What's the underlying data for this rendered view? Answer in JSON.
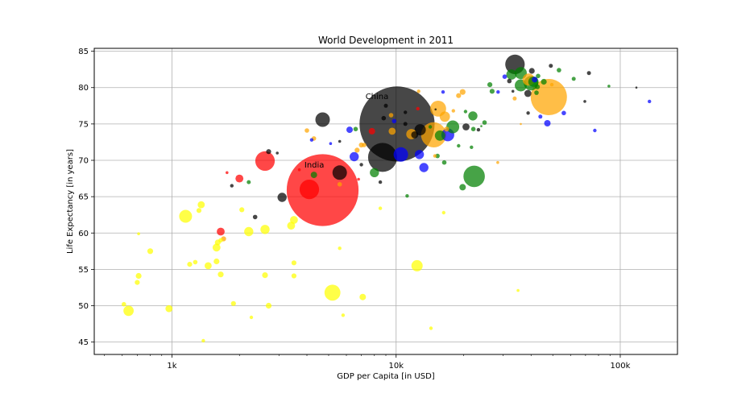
{
  "chart_data": {
    "type": "scatter",
    "title": "World Development in 2011",
    "xlabel": "GDP per Capita [in USD]",
    "ylabel": "Life Expectancy [in years]",
    "xscale": "log",
    "xlim": [
      450,
      180000
    ],
    "ylim": [
      43.3,
      85.4
    ],
    "grid": true,
    "xticks": [
      {
        "value": 1000,
        "label": "1k"
      },
      {
        "value": 10000,
        "label": "10k"
      },
      {
        "value": 100000,
        "label": "100k"
      }
    ],
    "yticks": [
      45,
      50,
      55,
      60,
      65,
      70,
      75,
      80,
      85
    ],
    "colors": {
      "black": "#000000",
      "red": "#ff0000",
      "yellow": "#ffff00",
      "orange": "#ffa500",
      "green": "#008000",
      "blue": "#0000ff"
    },
    "annotations": [
      {
        "text": "China",
        "x": 7300,
        "y": 78.4
      },
      {
        "text": "India",
        "x": 3900,
        "y": 69.0
      }
    ],
    "points": [
      {
        "x": 10100,
        "y": 75.0,
        "pop": 1340,
        "color": "black"
      },
      {
        "x": 4700,
        "y": 65.9,
        "pop": 1230,
        "color": "red"
      },
      {
        "x": 48000,
        "y": 78.7,
        "pop": 312,
        "color": "orange"
      },
      {
        "x": 5200,
        "y": 51.8,
        "pop": 60,
        "color": "yellow"
      },
      {
        "x": 4100,
        "y": 66.0,
        "pop": 90,
        "color": "red"
      },
      {
        "x": 8700,
        "y": 70.4,
        "pop": 200,
        "color": "black"
      },
      {
        "x": 14700,
        "y": 73.5,
        "pop": 150,
        "color": "orange"
      },
      {
        "x": 22300,
        "y": 67.8,
        "pop": 110,
        "color": "green"
      },
      {
        "x": 15400,
        "y": 77.1,
        "pop": 60,
        "color": "orange"
      },
      {
        "x": 33900,
        "y": 83.2,
        "pop": 90,
        "color": "black"
      },
      {
        "x": 2600,
        "y": 69.9,
        "pop": 90,
        "color": "red"
      },
      {
        "x": 4700,
        "y": 75.6,
        "pop": 50,
        "color": "black"
      },
      {
        "x": 5600,
        "y": 68.3,
        "pop": 50,
        "color": "black"
      },
      {
        "x": 10500,
        "y": 70.8,
        "pop": 50,
        "color": "blue"
      },
      {
        "x": 1150,
        "y": 62.3,
        "pop": 40,
        "color": "yellow"
      },
      {
        "x": 12400,
        "y": 55.5,
        "pop": 30,
        "color": "yellow"
      },
      {
        "x": 17000,
        "y": 73.5,
        "pop": 40,
        "color": "blue"
      },
      {
        "x": 17900,
        "y": 74.6,
        "pop": 40,
        "color": "green"
      },
      {
        "x": 40000,
        "y": 80.6,
        "pop": 50,
        "color": "green"
      },
      {
        "x": 36000,
        "y": 80.3,
        "pop": 35,
        "color": "green"
      },
      {
        "x": 36000,
        "y": 82.0,
        "pop": 35,
        "color": "green"
      },
      {
        "x": 39000,
        "y": 81.1,
        "pop": 35,
        "color": "orange"
      },
      {
        "x": 16500,
        "y": 76.0,
        "pop": 25,
        "color": "orange"
      },
      {
        "x": 12800,
        "y": 74.2,
        "pop": 30,
        "color": "black"
      },
      {
        "x": 11700,
        "y": 73.6,
        "pop": 25,
        "color": "orange"
      },
      {
        "x": 32700,
        "y": 81.8,
        "pop": 25,
        "color": "green"
      },
      {
        "x": 22000,
        "y": 76.1,
        "pop": 20,
        "color": "green"
      },
      {
        "x": 13300,
        "y": 69.0,
        "pop": 20,
        "color": "blue"
      },
      {
        "x": 12700,
        "y": 70.8,
        "pop": 20,
        "color": "blue"
      },
      {
        "x": 8000,
        "y": 68.3,
        "pop": 20,
        "color": "green"
      },
      {
        "x": 6500,
        "y": 70.5,
        "pop": 20,
        "color": "blue"
      },
      {
        "x": 3100,
        "y": 64.9,
        "pop": 20,
        "color": "black"
      },
      {
        "x": 2000,
        "y": 67.5,
        "pop": 15,
        "color": "red"
      },
      {
        "x": 1650,
        "y": 60.2,
        "pop": 15,
        "color": "red"
      },
      {
        "x": 1580,
        "y": 58.0,
        "pop": 15,
        "color": "yellow"
      },
      {
        "x": 2200,
        "y": 60.2,
        "pop": 20,
        "color": "yellow"
      },
      {
        "x": 2600,
        "y": 60.5,
        "pop": 20,
        "color": "yellow"
      },
      {
        "x": 3500,
        "y": 61.8,
        "pop": 15,
        "color": "yellow"
      },
      {
        "x": 3400,
        "y": 61.0,
        "pop": 15,
        "color": "yellow"
      },
      {
        "x": 1350,
        "y": 63.9,
        "pop": 12,
        "color": "yellow"
      },
      {
        "x": 1450,
        "y": 55.5,
        "pop": 12,
        "color": "yellow"
      },
      {
        "x": 970,
        "y": 49.6,
        "pop": 12,
        "color": "yellow"
      },
      {
        "x": 640,
        "y": 49.3,
        "pop": 25,
        "color": "yellow"
      },
      {
        "x": 7100,
        "y": 51.2,
        "pop": 10,
        "color": "yellow"
      },
      {
        "x": 800,
        "y": 57.5,
        "pop": 8,
        "color": "yellow"
      },
      {
        "x": 15700,
        "y": 73.4,
        "pop": 25,
        "color": "green"
      },
      {
        "x": 19800,
        "y": 66.3,
        "pop": 10,
        "color": "green"
      },
      {
        "x": 12100,
        "y": 73.5,
        "pop": 12,
        "color": "black"
      },
      {
        "x": 41000,
        "y": 80.8,
        "pop": 25,
        "color": "green"
      },
      {
        "x": 47300,
        "y": 75.1,
        "pop": 10,
        "color": "blue"
      },
      {
        "x": 38700,
        "y": 79.2,
        "pop": 12,
        "color": "black"
      },
      {
        "x": 9600,
        "y": 74.0,
        "pop": 12,
        "color": "orange"
      },
      {
        "x": 7800,
        "y": 74.0,
        "pop": 10,
        "color": "red"
      },
      {
        "x": 6200,
        "y": 74.2,
        "pop": 10,
        "color": "blue"
      },
      {
        "x": 4300,
        "y": 68.0,
        "pop": 10,
        "color": "green"
      },
      {
        "x": 4200,
        "y": 72.8,
        "pop": 3,
        "color": "blue"
      },
      {
        "x": 2700,
        "y": 71.2,
        "pop": 6,
        "color": "black"
      },
      {
        "x": 2200,
        "y": 67.0,
        "pop": 4,
        "color": "green"
      },
      {
        "x": 2350,
        "y": 62.2,
        "pop": 5,
        "color": "black"
      },
      {
        "x": 2050,
        "y": 63.2,
        "pop": 6,
        "color": "yellow"
      },
      {
        "x": 1700,
        "y": 59.2,
        "pop": 6,
        "color": "orange"
      },
      {
        "x": 1600,
        "y": 58.7,
        "pop": 8,
        "color": "yellow"
      },
      {
        "x": 1650,
        "y": 59.0,
        "pop": 5,
        "color": "yellow"
      },
      {
        "x": 1580,
        "y": 56.1,
        "pop": 8,
        "color": "yellow"
      },
      {
        "x": 1650,
        "y": 54.3,
        "pop": 8,
        "color": "yellow"
      },
      {
        "x": 1200,
        "y": 55.7,
        "pop": 6,
        "color": "yellow"
      },
      {
        "x": 1270,
        "y": 56.0,
        "pop": 5,
        "color": "yellow"
      },
      {
        "x": 1320,
        "y": 63.1,
        "pop": 6,
        "color": "yellow"
      },
      {
        "x": 710,
        "y": 54.1,
        "pop": 8,
        "color": "yellow"
      },
      {
        "x": 700,
        "y": 53.2,
        "pop": 6,
        "color": "yellow"
      },
      {
        "x": 610,
        "y": 50.2,
        "pop": 5,
        "color": "yellow"
      },
      {
        "x": 1880,
        "y": 50.3,
        "pop": 6,
        "color": "yellow"
      },
      {
        "x": 2700,
        "y": 50.0,
        "pop": 8,
        "color": "yellow"
      },
      {
        "x": 2600,
        "y": 54.2,
        "pop": 8,
        "color": "yellow"
      },
      {
        "x": 3500,
        "y": 54.1,
        "pop": 6,
        "color": "yellow"
      },
      {
        "x": 3500,
        "y": 55.9,
        "pop": 6,
        "color": "yellow"
      },
      {
        "x": 1380,
        "y": 45.2,
        "pop": 3,
        "color": "yellow"
      },
      {
        "x": 2260,
        "y": 48.4,
        "pop": 3,
        "color": "yellow"
      },
      {
        "x": 5600,
        "y": 57.9,
        "pop": 3,
        "color": "yellow"
      },
      {
        "x": 5800,
        "y": 48.7,
        "pop": 3,
        "color": "yellow"
      },
      {
        "x": 8500,
        "y": 63.4,
        "pop": 3,
        "color": "yellow"
      },
      {
        "x": 14300,
        "y": 46.9,
        "pop": 3,
        "color": "yellow"
      },
      {
        "x": 16300,
        "y": 62.8,
        "pop": 3,
        "color": "yellow"
      },
      {
        "x": 35000,
        "y": 52.1,
        "pop": 2,
        "color": "yellow"
      },
      {
        "x": 710,
        "y": 59.9,
        "pop": 2,
        "color": "yellow"
      },
      {
        "x": 1850,
        "y": 66.5,
        "pop": 3,
        "color": "black"
      },
      {
        "x": 1760,
        "y": 68.3,
        "pop": 2,
        "color": "red"
      },
      {
        "x": 2950,
        "y": 71.0,
        "pop": 2,
        "color": "black"
      },
      {
        "x": 3700,
        "y": 68.7,
        "pop": 2,
        "color": "red"
      },
      {
        "x": 4000,
        "y": 74.1,
        "pop": 5,
        "color": "orange"
      },
      {
        "x": 4300,
        "y": 73.0,
        "pop": 5,
        "color": "orange"
      },
      {
        "x": 5100,
        "y": 72.3,
        "pop": 2,
        "color": "blue"
      },
      {
        "x": 5600,
        "y": 72.6,
        "pop": 2,
        "color": "black"
      },
      {
        "x": 5600,
        "y": 66.7,
        "pop": 5,
        "color": "orange"
      },
      {
        "x": 6600,
        "y": 74.3,
        "pop": 5,
        "color": "green"
      },
      {
        "x": 6700,
        "y": 71.4,
        "pop": 6,
        "color": "orange"
      },
      {
        "x": 7000,
        "y": 72.1,
        "pop": 6,
        "color": "orange"
      },
      {
        "x": 7200,
        "y": 72.1,
        "pop": 5,
        "color": "orange"
      },
      {
        "x": 7000,
        "y": 69.4,
        "pop": 3,
        "color": "black"
      },
      {
        "x": 6800,
        "y": 67.4,
        "pop": 2,
        "color": "red"
      },
      {
        "x": 8500,
        "y": 67.0,
        "pop": 3,
        "color": "black"
      },
      {
        "x": 8800,
        "y": 75.8,
        "pop": 5,
        "color": "black"
      },
      {
        "x": 9000,
        "y": 77.5,
        "pop": 4,
        "color": "black"
      },
      {
        "x": 9500,
        "y": 76.2,
        "pop": 5,
        "color": "orange"
      },
      {
        "x": 9800,
        "y": 75.4,
        "pop": 5,
        "color": "blue"
      },
      {
        "x": 11000,
        "y": 75.0,
        "pop": 4,
        "color": "black"
      },
      {
        "x": 11000,
        "y": 76.6,
        "pop": 3,
        "color": "black"
      },
      {
        "x": 11200,
        "y": 65.1,
        "pop": 3,
        "color": "green"
      },
      {
        "x": 12500,
        "y": 77.1,
        "pop": 3,
        "color": "red"
      },
      {
        "x": 12600,
        "y": 79.5,
        "pop": 3,
        "color": "orange"
      },
      {
        "x": 14200,
        "y": 74.6,
        "pop": 3,
        "color": "green"
      },
      {
        "x": 14900,
        "y": 70.6,
        "pop": 3,
        "color": "orange"
      },
      {
        "x": 15300,
        "y": 70.6,
        "pop": 5,
        "color": "green"
      },
      {
        "x": 16400,
        "y": 69.7,
        "pop": 5,
        "color": "green"
      },
      {
        "x": 16200,
        "y": 79.4,
        "pop": 3,
        "color": "blue"
      },
      {
        "x": 16800,
        "y": 74.3,
        "pop": 6,
        "color": "orange"
      },
      {
        "x": 18000,
        "y": 76.8,
        "pop": 3,
        "color": "orange"
      },
      {
        "x": 19000,
        "y": 78.9,
        "pop": 6,
        "color": "orange"
      },
      {
        "x": 19800,
        "y": 79.4,
        "pop": 8,
        "color": "orange"
      },
      {
        "x": 19000,
        "y": 72.0,
        "pop": 3,
        "color": "green"
      },
      {
        "x": 20400,
        "y": 76.7,
        "pop": 3,
        "color": "green"
      },
      {
        "x": 20500,
        "y": 74.6,
        "pop": 12,
        "color": "black"
      },
      {
        "x": 21700,
        "y": 71.8,
        "pop": 3,
        "color": "green"
      },
      {
        "x": 22100,
        "y": 74.3,
        "pop": 5,
        "color": "green"
      },
      {
        "x": 23300,
        "y": 74.2,
        "pop": 3,
        "color": "black"
      },
      {
        "x": 24800,
        "y": 75.2,
        "pop": 5,
        "color": "green"
      },
      {
        "x": 26200,
        "y": 80.4,
        "pop": 6,
        "color": "green"
      },
      {
        "x": 26800,
        "y": 79.5,
        "pop": 6,
        "color": "green"
      },
      {
        "x": 28500,
        "y": 79.4,
        "pop": 3,
        "color": "blue"
      },
      {
        "x": 28400,
        "y": 69.7,
        "pop": 2,
        "color": "orange"
      },
      {
        "x": 30500,
        "y": 81.5,
        "pop": 5,
        "color": "blue"
      },
      {
        "x": 32000,
        "y": 80.9,
        "pop": 5,
        "color": "black"
      },
      {
        "x": 33800,
        "y": 78.5,
        "pop": 4,
        "color": "orange"
      },
      {
        "x": 33200,
        "y": 79.5,
        "pop": 2,
        "color": "black"
      },
      {
        "x": 40300,
        "y": 82.3,
        "pop": 8,
        "color": "black"
      },
      {
        "x": 43000,
        "y": 81.6,
        "pop": 5,
        "color": "green"
      },
      {
        "x": 41500,
        "y": 81.1,
        "pop": 8,
        "color": "blue"
      },
      {
        "x": 42700,
        "y": 80.1,
        "pop": 6,
        "color": "green"
      },
      {
        "x": 45600,
        "y": 80.8,
        "pop": 8,
        "color": "green"
      },
      {
        "x": 44000,
        "y": 76.0,
        "pop": 4,
        "color": "blue"
      },
      {
        "x": 49000,
        "y": 83.0,
        "pop": 4,
        "color": "black"
      },
      {
        "x": 49500,
        "y": 80.4,
        "pop": 3,
        "color": "orange"
      },
      {
        "x": 38800,
        "y": 76.5,
        "pop": 3,
        "color": "black"
      },
      {
        "x": 42300,
        "y": 79.3,
        "pop": 5,
        "color": "green"
      },
      {
        "x": 53300,
        "y": 82.4,
        "pop": 5,
        "color": "green"
      },
      {
        "x": 56000,
        "y": 76.5,
        "pop": 5,
        "color": "blue"
      },
      {
        "x": 62000,
        "y": 81.2,
        "pop": 4,
        "color": "green"
      },
      {
        "x": 72500,
        "y": 82.0,
        "pop": 4,
        "color": "black"
      },
      {
        "x": 69500,
        "y": 78.1,
        "pop": 2,
        "color": "black"
      },
      {
        "x": 77000,
        "y": 74.1,
        "pop": 3,
        "color": "blue"
      },
      {
        "x": 89000,
        "y": 80.2,
        "pop": 2,
        "color": "green"
      },
      {
        "x": 118000,
        "y": 80.0,
        "pop": 1,
        "color": "black"
      },
      {
        "x": 135000,
        "y": 78.1,
        "pop": 3,
        "color": "blue"
      },
      {
        "x": 24000,
        "y": 74.7,
        "pop": 1,
        "color": "green"
      },
      {
        "x": 15000,
        "y": 77.0,
        "pop": 1,
        "color": "black"
      },
      {
        "x": 36000,
        "y": 75.0,
        "pop": 1,
        "color": "orange"
      }
    ]
  }
}
